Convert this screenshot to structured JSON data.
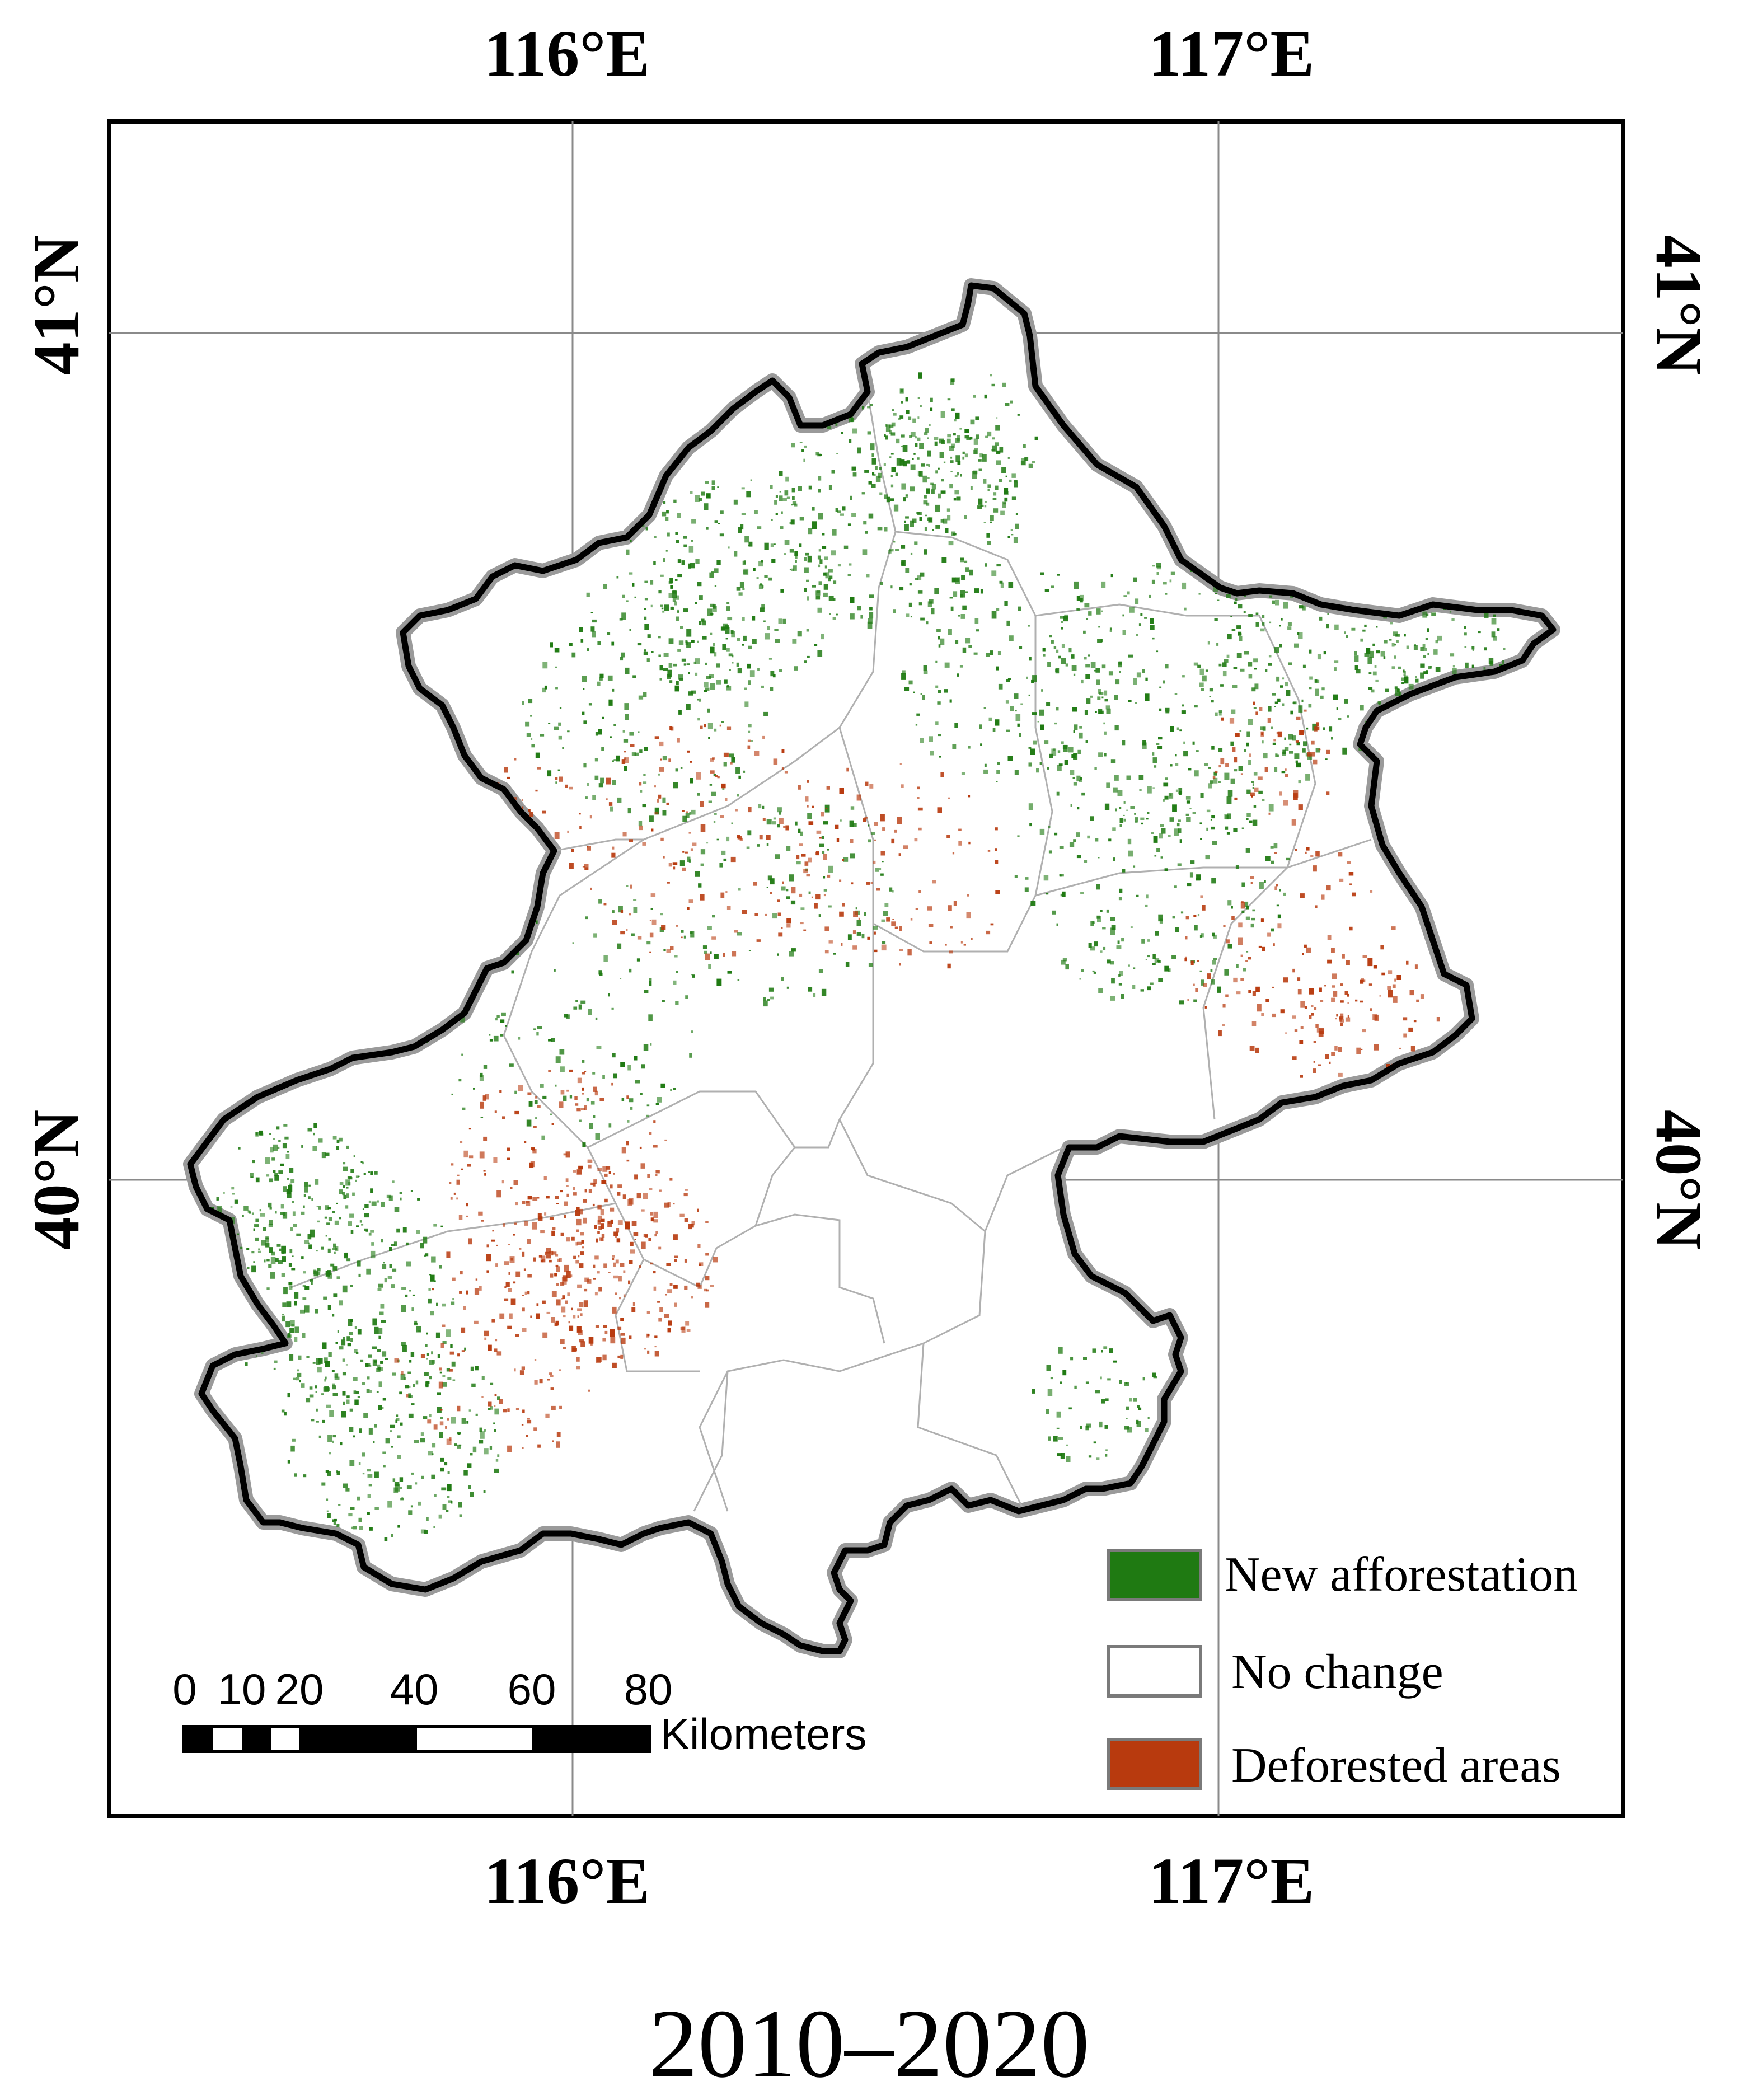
{
  "map": {
    "coordinates": {
      "lon_top": [
        "116°E",
        "117°E"
      ],
      "lon_bottom": [
        "116°E",
        "117°E"
      ],
      "lat_left": [
        "41°N",
        "40°N"
      ],
      "lat_right": [
        "41°N",
        "40°N"
      ]
    },
    "legend": [
      {
        "label": "New afforestation",
        "color": "#1f7a12"
      },
      {
        "label": "No change",
        "color": "#ffffff"
      },
      {
        "label": "Deforested areas",
        "color": "#b83a0e"
      }
    ],
    "scale_bar": {
      "ticks": [
        "0",
        "10",
        "20",
        "40",
        "60",
        "80"
      ],
      "unit": "Kilometers"
    }
  },
  "caption": "2010–2020"
}
